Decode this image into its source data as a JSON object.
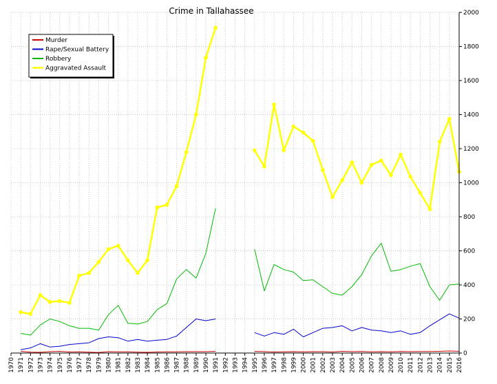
{
  "chart_data": {
    "type": "line",
    "title": "Crime in Tallahassee",
    "xlabel": "",
    "ylabel": "",
    "x": [
      "1970",
      "1971",
      "1972",
      "1973",
      "1974",
      "1975",
      "1976",
      "1977",
      "1978",
      "1979",
      "1980",
      "1981",
      "1982",
      "1983",
      "1984",
      "1985",
      "1986",
      "1987",
      "1988",
      "1989",
      "1990",
      "1991",
      "1992",
      "1993",
      "1994",
      "1995",
      "1996",
      "1997",
      "1998",
      "1999",
      "2000",
      "2001",
      "2002",
      "2003",
      "2004",
      "2005",
      "2006",
      "2007",
      "2008",
      "2009",
      "2010",
      "2011",
      "2012",
      "2013",
      "2014",
      "2015",
      "2016"
    ],
    "ylim": [
      0,
      2000
    ],
    "yticks": [
      "0",
      "200",
      "400",
      "600",
      "800",
      "1000",
      "1200",
      "1400",
      "1600",
      "1800",
      "2000"
    ],
    "y_axis_side": "right",
    "grid": true,
    "legend_position": "top-left",
    "series": [
      {
        "name": "Murder",
        "color": "#cc0000",
        "markers": false,
        "values": [
          null,
          10,
          5,
          4,
          8,
          10,
          6,
          7,
          5,
          3,
          8,
          7,
          7,
          5,
          4,
          6,
          7,
          7,
          8,
          8,
          8,
          10,
          null,
          null,
          null,
          10,
          8,
          6,
          7,
          8,
          7,
          8,
          8,
          6,
          10,
          8,
          9,
          7,
          8,
          7,
          9,
          8,
          9,
          9,
          10,
          12,
          10
        ]
      },
      {
        "name": "Rape/Sexual Battery",
        "color": "#0000cc",
        "markers": false,
        "values": [
          null,
          20,
          30,
          55,
          35,
          40,
          50,
          55,
          60,
          85,
          95,
          90,
          70,
          80,
          70,
          75,
          80,
          100,
          150,
          200,
          190,
          200,
          null,
          null,
          null,
          120,
          100,
          120,
          110,
          140,
          95,
          120,
          145,
          150,
          160,
          130,
          150,
          135,
          130,
          120,
          130,
          110,
          120,
          160,
          195,
          230,
          205
        ]
      },
      {
        "name": "Robbery",
        "color": "#00bb00",
        "markers": false,
        "values": [
          null,
          115,
          105,
          165,
          200,
          185,
          160,
          145,
          145,
          135,
          225,
          280,
          175,
          170,
          185,
          255,
          290,
          435,
          490,
          440,
          585,
          850,
          null,
          null,
          null,
          610,
          365,
          520,
          490,
          475,
          425,
          430,
          390,
          350,
          340,
          390,
          460,
          570,
          645,
          480,
          490,
          510,
          525,
          390,
          310,
          400,
          405
        ]
      },
      {
        "name": "Aggravated Assault",
        "color": "#ffff00",
        "markers": true,
        "values": [
          null,
          240,
          230,
          340,
          300,
          305,
          295,
          455,
          470,
          535,
          610,
          630,
          545,
          470,
          545,
          855,
          870,
          980,
          1180,
          1400,
          1735,
          1910,
          null,
          null,
          null,
          1190,
          1095,
          1460,
          1190,
          1330,
          1295,
          1245,
          1075,
          915,
          1015,
          1120,
          1000,
          1105,
          1130,
          1045,
          1165,
          1035,
          940,
          845,
          1240,
          1375,
          1065
        ]
      }
    ]
  }
}
